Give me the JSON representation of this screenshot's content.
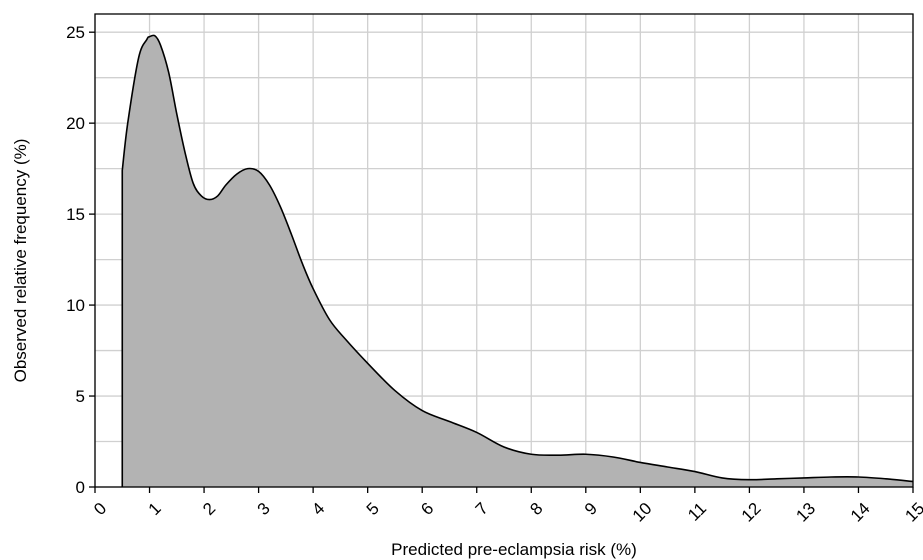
{
  "chart_data": {
    "type": "area",
    "title": "",
    "xlabel": "Predicted pre-eclampsia risk (%)",
    "ylabel": "Observed relative frequency  (%)",
    "xlim": [
      0,
      15
    ],
    "ylim": [
      0,
      26
    ],
    "x_ticks": [
      "0",
      "1",
      "2",
      "3",
      "4",
      "5",
      "6",
      "7",
      "8",
      "9",
      "10",
      "11",
      "12",
      "13",
      "14",
      "15"
    ],
    "y_ticks": [
      "0",
      "5",
      "10",
      "15",
      "20",
      "25"
    ],
    "grid": true,
    "legend": "none",
    "fill_color": "#b3b3b3",
    "line_color": "#000000",
    "grid_color": "#d0d0d0",
    "series": [
      {
        "x": [
          0.5,
          0.6,
          0.8,
          0.95,
          1.0,
          1.1,
          1.2,
          1.35,
          1.5,
          1.65,
          1.8,
          1.95,
          2.1,
          2.25,
          2.4,
          2.6,
          2.8,
          3.0,
          3.2,
          3.4,
          3.6,
          3.8,
          4.0,
          4.3,
          4.6,
          5.0,
          5.5,
          6.0,
          6.5,
          7.0,
          7.5,
          8.0,
          8.5,
          9.0,
          9.5,
          10.0,
          10.5,
          11.0,
          11.5,
          12.0,
          12.5,
          13.0,
          13.5,
          14.0,
          14.5,
          15.0
        ],
        "values": [
          17.4,
          20.0,
          23.6,
          24.6,
          24.75,
          24.8,
          24.3,
          22.8,
          20.5,
          18.4,
          16.7,
          16.0,
          15.8,
          16.0,
          16.6,
          17.2,
          17.5,
          17.35,
          16.6,
          15.4,
          13.9,
          12.3,
          10.9,
          9.2,
          8.1,
          6.8,
          5.3,
          4.2,
          3.6,
          3.0,
          2.2,
          1.8,
          1.75,
          1.8,
          1.65,
          1.35,
          1.1,
          0.85,
          0.5,
          0.4,
          0.45,
          0.5,
          0.55,
          0.55,
          0.45,
          0.3
        ]
      }
    ]
  }
}
